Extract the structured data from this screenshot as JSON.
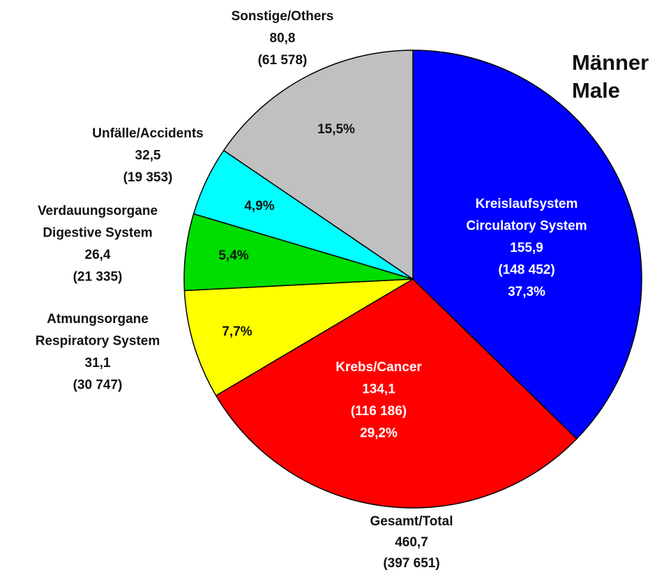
{
  "chart_data": {
    "type": "pie",
    "title": [
      "Männer",
      "Male"
    ],
    "categories": [
      [
        "Kreislaufsystem",
        "Circulatory System"
      ],
      [
        "Krebs/Cancer"
      ],
      [
        "Atmungsorgane",
        "Respiratory System"
      ],
      [
        "Verdauungsorgane",
        "Digestive System"
      ],
      [
        "Unfälle/Accidents"
      ],
      [
        "Sonstige/Others"
      ]
    ],
    "rates": [
      "155,9",
      "134,1",
      "31,1",
      "26,4",
      "32,5",
      "80,8"
    ],
    "counts": [
      "(148 452)",
      "(116 186)",
      "(30 747)",
      "(21 335)",
      "(19 353)",
      "(61 578)"
    ],
    "series": [
      {
        "values": [
          37.3,
          29.2,
          7.7,
          5.4,
          4.9,
          15.5
        ],
        "value_labels": [
          "37,3%",
          "29,2%",
          "7,7%",
          "5,4%",
          "4,9%",
          "15,5%"
        ],
        "colors": [
          "#0000ff",
          "#ff0000",
          "#ffff00",
          "#00dd00",
          "#00ffff",
          "#c0c0c0"
        ]
      }
    ],
    "total": {
      "label": "Gesamt/Total",
      "rate": "460,7",
      "count": "(397 651)"
    }
  }
}
